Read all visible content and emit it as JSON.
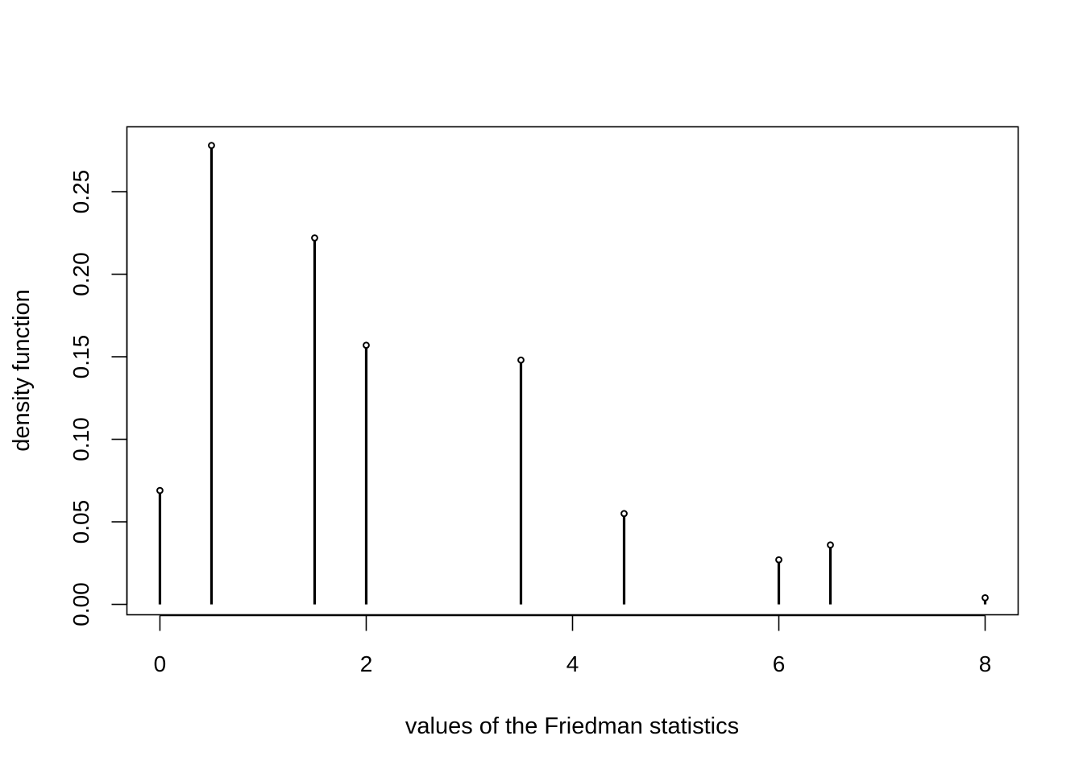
{
  "chart_data": {
    "type": "scatter",
    "style": "histogram-stems",
    "xlabel": "values of the Friedman statistics",
    "ylabel": "density function",
    "x": [
      0,
      0.5,
      1.5,
      2,
      3.5,
      4.5,
      6,
      6.5,
      8
    ],
    "y": [
      0.069,
      0.278,
      0.222,
      0.157,
      0.148,
      0.055,
      0.027,
      0.036,
      0.004
    ],
    "xticks": [
      "0",
      "2",
      "4",
      "6",
      "8"
    ],
    "yticks": [
      "0.00",
      "0.05",
      "0.10",
      "0.15",
      "0.20",
      "0.25"
    ],
    "xlim": [
      -0.32,
      8.32
    ],
    "ylim": [
      -0.0063,
      0.2893
    ],
    "grid": false,
    "legend": "none",
    "color": "#000000"
  }
}
